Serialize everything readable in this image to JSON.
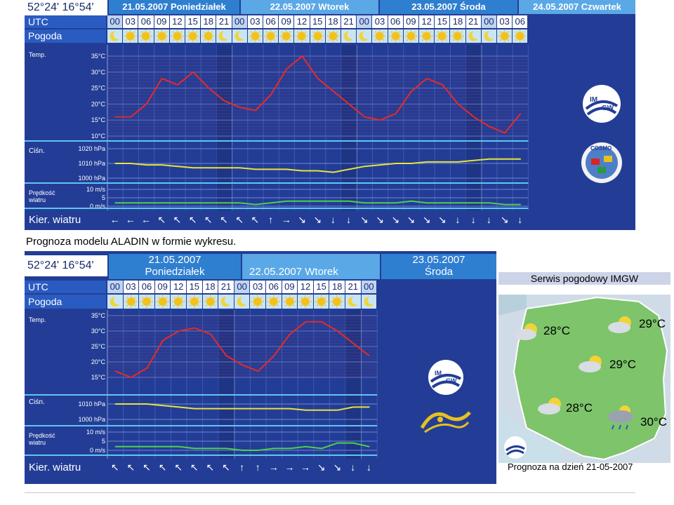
{
  "meteogram1": {
    "coords": "52°24' 16°54'",
    "days": [
      "21.05.2007 Poniedziałek",
      "22.05.2007 Wtorek",
      "23.05.2007 Środa",
      "24.05.2007 Czwartek"
    ],
    "hours": [
      "00",
      "03",
      "06",
      "09",
      "12",
      "15",
      "18",
      "21",
      "00",
      "03",
      "06",
      "09",
      "12",
      "15",
      "18",
      "21",
      "00",
      "03",
      "06",
      "09",
      "12",
      "15",
      "18",
      "21",
      "00",
      "03",
      "06"
    ],
    "utc_label": "UTC",
    "pogoda_label": "Pogoda",
    "temp_label": "Temp.",
    "temp_ticks": [
      "35°C",
      "30°C",
      "25°C",
      "20°C",
      "15°C",
      "10°C"
    ],
    "temp_values": [
      16,
      16,
      20,
      28,
      26,
      30,
      25,
      21,
      19,
      18,
      23,
      31,
      35,
      28,
      24,
      20,
      16,
      15,
      17,
      24,
      28,
      26,
      20,
      16,
      13,
      11,
      17
    ],
    "pressure_label": "Ciśn.",
    "pressure_ticks": [
      "1020 hPa",
      "1010 hPa",
      "1000 hPa"
    ],
    "pressure_values": [
      1010,
      1010,
      1009,
      1009,
      1008,
      1007,
      1007,
      1007,
      1007,
      1006,
      1006,
      1006,
      1005,
      1005,
      1004,
      1006,
      1008,
      1009,
      1010,
      1010,
      1011,
      1011,
      1011,
      1012,
      1013,
      1013,
      1013
    ],
    "wind_label": "Prędkość wiatru",
    "wind_ticks": [
      "10 m/s",
      "5",
      "0 m/s"
    ],
    "wind_values": [
      2,
      2,
      2,
      2,
      2,
      2,
      2,
      2,
      2,
      1,
      2,
      3,
      3,
      3,
      3,
      3,
      2,
      2,
      2,
      3,
      2,
      2,
      2,
      2,
      2,
      1,
      1
    ],
    "kier_label": "Kier. wiatru",
    "wind_dirs": [
      "←",
      "←",
      "←",
      "↖",
      "↖",
      "↖",
      "↖",
      "↖",
      "↖",
      "↖",
      "↑",
      "→",
      "↘",
      "↘",
      "↓",
      "↓",
      "↘",
      "↘",
      "↘",
      "↘",
      "↘",
      "↘",
      "↓",
      "↓",
      "↓",
      "↘",
      "↓"
    ]
  },
  "caption": "Prognoza modelu ALADIN w formie wykresu.",
  "meteogram2": {
    "coords": "52°24' 16°54'",
    "day1_date": "21.05.2007",
    "day1_name": "Poniedziałek",
    "day2": "22.05.2007   Wtorek",
    "day3_date": "23.05.2007",
    "day3_name": "Środa",
    "hours": [
      "00",
      "03",
      "06",
      "09",
      "12",
      "15",
      "18",
      "21",
      "00",
      "03",
      "06",
      "09",
      "12",
      "15",
      "18",
      "21",
      "00"
    ],
    "utc_label": "UTC",
    "pogoda_label": "Pogoda",
    "temp_label": "Temp.",
    "temp_ticks": [
      "35°C",
      "30°C",
      "25°C",
      "20°C",
      "15°C"
    ],
    "temp_values": [
      17,
      15,
      18,
      27,
      30,
      31,
      29,
      22,
      19,
      17,
      22,
      29,
      33,
      33,
      30,
      26,
      22
    ],
    "pressure_label": "Ciśn.",
    "pressure_ticks": [
      "1010 hPa",
      "1000 hPa"
    ],
    "pressure_values": [
      1010,
      1010,
      1010,
      1009,
      1008,
      1007,
      1007,
      1007,
      1007,
      1007,
      1007,
      1007,
      1006,
      1006,
      1006,
      1008,
      1008
    ],
    "wind_label": "Prędkość wiatru",
    "wind_ticks": [
      "10 m/s",
      "5",
      "0 m/s"
    ],
    "wind_values": [
      2,
      2,
      2,
      2,
      2,
      1,
      1,
      1,
      0,
      0,
      1,
      1,
      2,
      1,
      4,
      4,
      2
    ],
    "kier_label": "Kier. wiatru",
    "wind_dirs": [
      "↖",
      "↖",
      "↖",
      "↖",
      "↖",
      "↖",
      "↖",
      "↖",
      "↑",
      "↑",
      "→",
      "→",
      "→",
      "↘",
      "↘",
      "↓",
      "↓"
    ]
  },
  "imgw": {
    "title": "Serwis pogodowy IMGW",
    "temps": [
      "28°C",
      "29°C",
      "29°C",
      "28°C",
      "30°C"
    ],
    "caption": "Prognoza na dzień 21-05-2007"
  },
  "colors": {
    "meteogram_bg": "#233d96",
    "temperature_line": "#e52a2a",
    "pressure_line": "#e6e43a",
    "wind_line": "#4cd04c",
    "map_land": "#7dc46a",
    "map_water": "#cfdbe6"
  }
}
